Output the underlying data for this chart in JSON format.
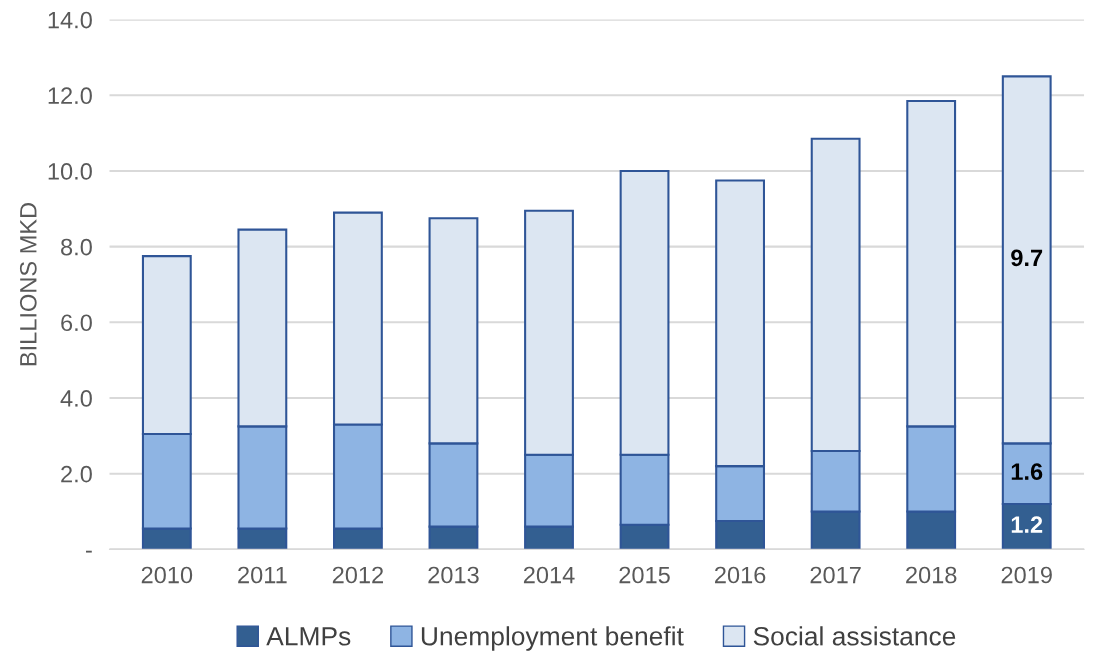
{
  "chart_data": {
    "type": "bar",
    "stacked": true,
    "ylabel": "BILLIONS MKD",
    "categories": [
      "2010",
      "2011",
      "2012",
      "2013",
      "2014",
      "2015",
      "2016",
      "2017",
      "2018",
      "2019"
    ],
    "series": [
      {
        "name": "ALMPs",
        "color": "#335f91",
        "values": [
          0.55,
          0.55,
          0.55,
          0.6,
          0.6,
          0.65,
          0.75,
          1.0,
          1.0,
          1.2
        ],
        "value_labels": [
          null,
          null,
          null,
          null,
          null,
          null,
          null,
          null,
          null,
          "1.2"
        ]
      },
      {
        "name": "Unemployment benefit",
        "color": "#8eb4e3",
        "values": [
          2.5,
          2.7,
          2.75,
          2.2,
          1.9,
          1.85,
          1.45,
          1.6,
          2.25,
          1.6
        ],
        "value_labels": [
          null,
          null,
          null,
          null,
          null,
          null,
          null,
          null,
          null,
          "1.6"
        ]
      },
      {
        "name": "Social assistance",
        "color": "#dce6f2",
        "values": [
          4.7,
          5.2,
          5.6,
          5.95,
          6.45,
          7.5,
          7.55,
          8.25,
          8.6,
          9.7
        ],
        "value_labels": [
          null,
          null,
          null,
          null,
          null,
          null,
          null,
          null,
          null,
          "9.7"
        ]
      }
    ],
    "ylim": [
      0,
      14
    ],
    "yticks": [
      {
        "value": 0,
        "label": "-"
      },
      {
        "value": 2,
        "label": "2.0"
      },
      {
        "value": 4,
        "label": "4.0"
      },
      {
        "value": 6,
        "label": "6.0"
      },
      {
        "value": 8,
        "label": "8.0"
      },
      {
        "value": 10,
        "label": "10.0"
      },
      {
        "value": 12,
        "label": "12.0"
      },
      {
        "value": 14,
        "label": "14.0"
      }
    ],
    "grid": "y",
    "legend": "bottom"
  }
}
